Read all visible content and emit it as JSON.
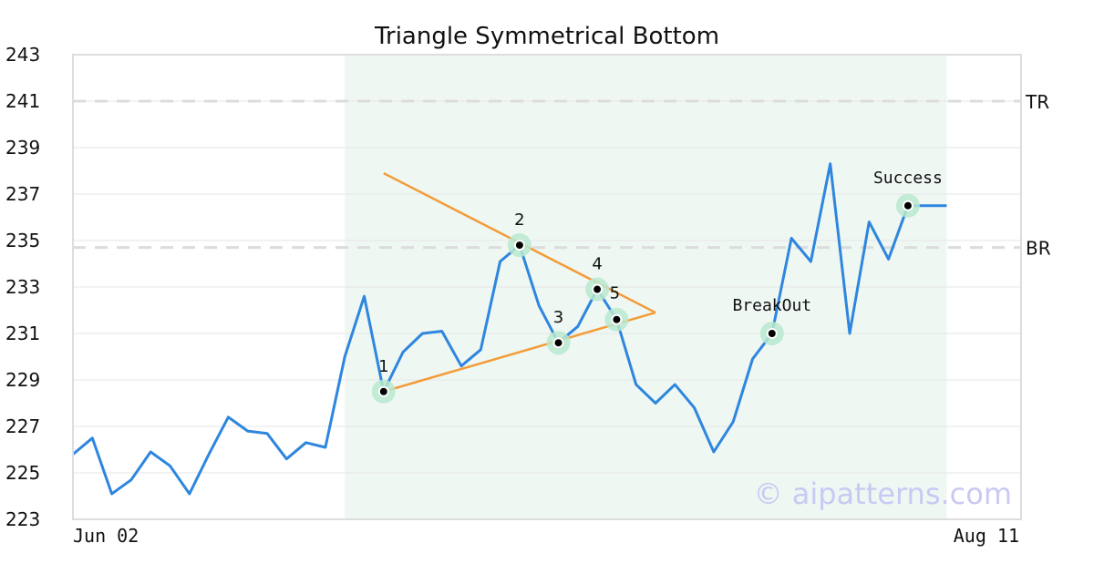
{
  "chart_data": {
    "type": "line",
    "title": "Triangle Symmetrical Bottom",
    "ylim": [
      223,
      243
    ],
    "yticks": [
      223,
      225,
      227,
      229,
      231,
      233,
      235,
      237,
      239,
      241,
      243
    ],
    "x_labels": [
      "Jun 02",
      "Aug 11"
    ],
    "grid": true,
    "series": [
      {
        "color": "#2e86de",
        "values": [
          225.8,
          226.5,
          224.1,
          224.7,
          225.9,
          225.3,
          224.1,
          225.8,
          227.4,
          226.8,
          226.7,
          225.6,
          226.3,
          226.1,
          230.0,
          232.6,
          228.5,
          230.2,
          231.0,
          231.1,
          229.6,
          230.3,
          234.1,
          234.8,
          232.2,
          230.6,
          231.3,
          232.9,
          231.6,
          228.8,
          228.0,
          228.8,
          227.8,
          225.9,
          227.2,
          229.9,
          231.0,
          235.1,
          234.1,
          238.3,
          231.0,
          235.8,
          234.2,
          236.5,
          236.5,
          236.5
        ]
      }
    ],
    "pattern_region": {
      "start_index": 14,
      "end_index": 45
    },
    "reference_lines": [
      {
        "label": "TR",
        "value": 241
      },
      {
        "label": "BR",
        "value": 234.7
      }
    ],
    "trend_lines": [
      {
        "color": "#f39c38",
        "points": [
          [
            16,
            237.9
          ],
          [
            30,
            231.9
          ]
        ]
      },
      {
        "color": "#f39c38",
        "points": [
          [
            16,
            228.5
          ],
          [
            30,
            231.9
          ]
        ]
      }
    ],
    "points": [
      {
        "label": "1",
        "index": 16,
        "value": 228.5
      },
      {
        "label": "2",
        "index": 23,
        "value": 234.8
      },
      {
        "label": "3",
        "index": 25,
        "value": 230.6
      },
      {
        "label": "4",
        "index": 27,
        "value": 232.9
      },
      {
        "label": "5",
        "index": 28,
        "value": 231.6
      }
    ],
    "events": [
      {
        "label": "BreakOut",
        "index": 36,
        "value": 231.0
      },
      {
        "label": "Success",
        "index": 43,
        "value": 236.5
      }
    ],
    "watermark": "© aipatterns.com"
  }
}
